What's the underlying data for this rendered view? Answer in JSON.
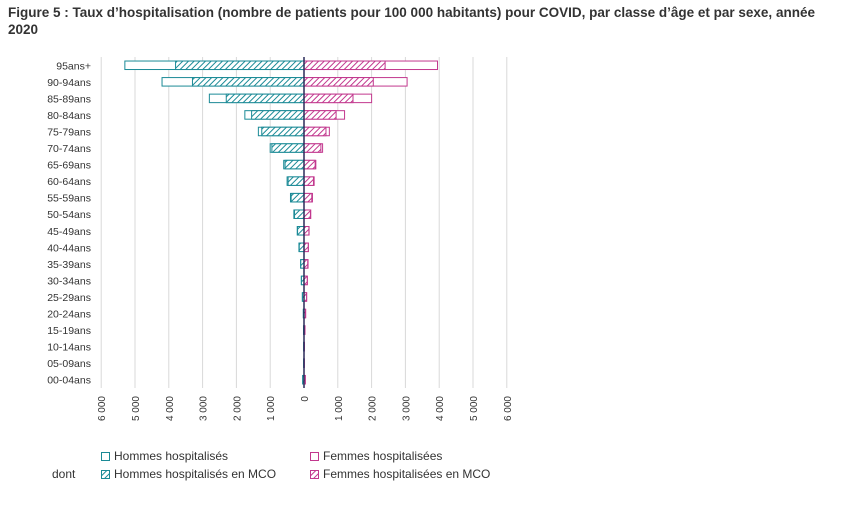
{
  "title": "Figure 5 : Taux d’hospitalisation (nombre de patients pour 100 000 habitants) pour COVID, par classe d’âge et par sexe, année 2020",
  "colors": {
    "hommes": "#1b8a96",
    "femmes": "#c2388e",
    "grid": "#d9d9d9",
    "axis": "#2b2b5a"
  },
  "legend": {
    "dont_label": "dont",
    "hommes_hosp": "Hommes hospitalisés",
    "femmes_hosp": "Femmes hospitalisées",
    "hommes_mco": "Hommes hospitalisés en MCO",
    "femmes_mco": "Femmes hospitalisées en MCO"
  },
  "chart_data": {
    "type": "bar",
    "orientation": "horizontal-pyramid",
    "title": "Figure 5 : Taux d’hospitalisation (nombre de patients pour 100 000 habitants) pour COVID, par classe d’âge et par sexe, année 2020",
    "categories": [
      "95ans+",
      "90-94ans",
      "85-89ans",
      "80-84ans",
      "75-79ans",
      "70-74ans",
      "65-69ans",
      "60-64ans",
      "55-59ans",
      "50-54ans",
      "45-49ans",
      "40-44ans",
      "35-39ans",
      "30-34ans",
      "25-29ans",
      "20-24ans",
      "15-19ans",
      "10-14ans",
      "05-09ans",
      "00-04ans"
    ],
    "series": [
      {
        "name": "Hommes hospitalisés",
        "side": "left",
        "style": "outline",
        "values": [
          5300,
          4200,
          2800,
          1750,
          1350,
          1000,
          600,
          500,
          400,
          300,
          200,
          150,
          100,
          80,
          50,
          20,
          15,
          10,
          10,
          40
        ]
      },
      {
        "name": "Hommes hospitalisés en MCO",
        "side": "left",
        "style": "hatched",
        "values": [
          3800,
          3300,
          2300,
          1550,
          1250,
          950,
          560,
          470,
          380,
          280,
          190,
          140,
          95,
          75,
          45,
          18,
          12,
          8,
          8,
          35
        ]
      },
      {
        "name": "Femmes hospitalisées",
        "side": "right",
        "style": "outline",
        "values": [
          3950,
          3050,
          2000,
          1200,
          750,
          550,
          350,
          300,
          250,
          200,
          150,
          130,
          120,
          100,
          80,
          50,
          30,
          15,
          10,
          40
        ]
      },
      {
        "name": "Femmes hospitalisées en MCO",
        "side": "right",
        "style": "hatched",
        "values": [
          2400,
          2050,
          1450,
          950,
          650,
          500,
          330,
          280,
          230,
          190,
          145,
          125,
          110,
          95,
          75,
          45,
          25,
          12,
          8,
          35
        ]
      }
    ],
    "xlim": [
      -6000,
      6000
    ],
    "xticks": [
      -6000,
      -5000,
      -4000,
      -3000,
      -2000,
      -1000,
      0,
      1000,
      2000,
      3000,
      4000,
      5000,
      6000
    ],
    "xtick_labels": [
      "6 000",
      "5 000",
      "4 000",
      "3 000",
      "2 000",
      "1 000",
      "0",
      "1 000",
      "2 000",
      "3 000",
      "4 000",
      "5 000",
      "6 000"
    ],
    "grid": true,
    "legend_position": "bottom"
  }
}
